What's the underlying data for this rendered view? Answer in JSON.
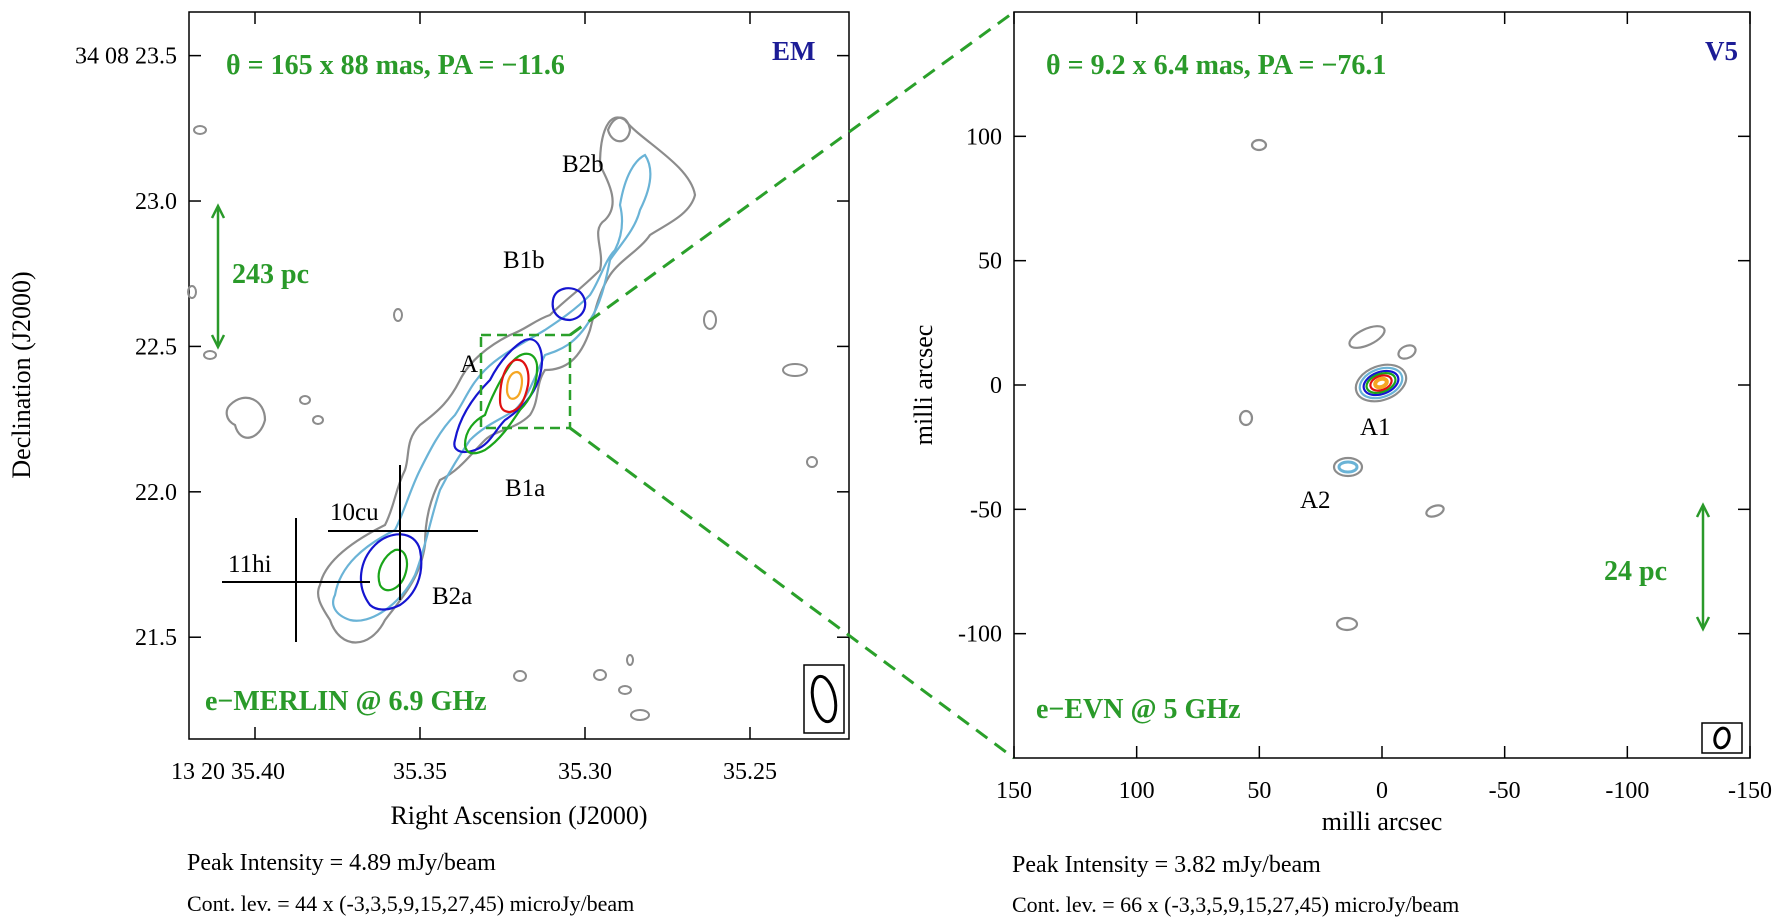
{
  "chart_data": [
    {
      "type": "contour",
      "tag": "EM",
      "beam_text": "θ = 165 x 88 mas, PA = −11.6",
      "instrument": "e−MERLIN @ 6.9 GHz",
      "scale_bar": "243 pc",
      "xlabel": "Right Ascension (J2000)",
      "ylabel": "Declination (J2000)",
      "x_ticks": [
        "13 20 35.40",
        "35.35",
        "35.30",
        "35.25"
      ],
      "x_tick_values": [
        35.4,
        35.35,
        35.3,
        35.25
      ],
      "xlim": [
        35.42,
        35.22
      ],
      "y_ticks": [
        "34 08 23.5",
        "23.0",
        "22.5",
        "22.0",
        "21.5"
      ],
      "y_tick_values": [
        23.5,
        23.0,
        22.5,
        22.0,
        21.5
      ],
      "ylim": [
        21.15,
        23.65
      ],
      "components": [
        {
          "label": "B2b",
          "ra": 35.285,
          "dec": 23.05
        },
        {
          "label": "B1b",
          "ra": 35.3,
          "dec": 22.62
        },
        {
          "label": "A",
          "ra": 35.32,
          "dec": 22.37
        },
        {
          "label": "B1a",
          "ra": 35.33,
          "dec": 22.16
        },
        {
          "label": "B2a",
          "ra": 35.352,
          "dec": 21.72
        }
      ],
      "crosses": [
        {
          "label": "10cu",
          "ra": 35.354,
          "dec": 21.86
        },
        {
          "label": "11hi",
          "ra": 35.384,
          "dec": 21.69
        }
      ],
      "peak_intensity": "Peak Intensity = 4.89 mJy/beam",
      "contour_levels": "Cont. lev. = 44 x (-3,3,5,9,15,27,45) microJy/beam"
    },
    {
      "type": "contour",
      "tag": "V5",
      "beam_text": "θ = 9.2 x 6.4 mas, PA = −76.1",
      "instrument": "e−EVN @ 5 GHz",
      "scale_bar": "24 pc",
      "xlabel": "milli arcsec",
      "ylabel": "milli arcsec",
      "x_ticks": [
        "150",
        "100",
        "50",
        "0",
        "-50",
        "-100",
        "-150"
      ],
      "x_tick_values": [
        150,
        100,
        50,
        0,
        -50,
        -100,
        -150
      ],
      "xlim": [
        150,
        -150
      ],
      "y_ticks": [
        "100",
        "50",
        "0",
        "-50",
        "-100"
      ],
      "y_tick_values": [
        100,
        50,
        0,
        -50,
        -100
      ],
      "ylim": [
        -150,
        150
      ],
      "components": [
        {
          "label": "A1",
          "x": 0,
          "y": 0
        },
        {
          "label": "A2",
          "x": 15,
          "y": -34
        }
      ],
      "peak_intensity": "Peak Intensity = 3.82 mJy/beam",
      "contour_levels": "Cont. lev. = 66 x (-3,3,5,9,15,27,45) microJy/beam"
    }
  ],
  "colors": {
    "grey": "#8c8c8c",
    "lightblue": "#6ab3d6",
    "blue": "#1515d0",
    "green": "#1aa51a",
    "red": "#e01010",
    "orange": "#f5a623",
    "label_green": "#2a9a2a",
    "tag_blue": "#1c1c96",
    "dash": "#2aa02a"
  }
}
